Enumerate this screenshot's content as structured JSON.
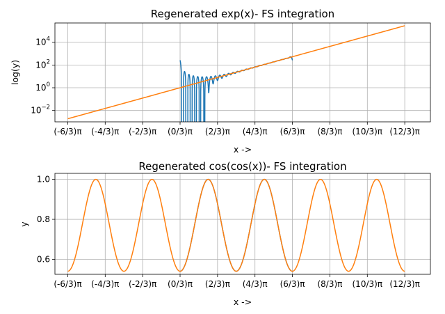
{
  "chart_data": [
    {
      "type": "line",
      "title": "Regenerated exp(x)- FS integration",
      "xlabel": "x ->",
      "ylabel": "log(y)",
      "yscale": "log",
      "xlim": [
        -7.0,
        14.0
      ],
      "ylim_exponent": [
        -3.0,
        5.7
      ],
      "grid": true,
      "xticks": [
        {
          "value": -6.2832,
          "label": "(-6/3)π"
        },
        {
          "value": -4.1888,
          "label": "(-4/3)π"
        },
        {
          "value": -2.0944,
          "label": "(-2/3)π"
        },
        {
          "value": 0.0,
          "label": "(0/3)π"
        },
        {
          "value": 2.0944,
          "label": "(2/3)π"
        },
        {
          "value": 4.1888,
          "label": "(4/3)π"
        },
        {
          "value": 6.2832,
          "label": "(6/3)π"
        },
        {
          "value": 8.3776,
          "label": "(8/3)π"
        },
        {
          "value": 10.472,
          "label": "(10/3)π"
        },
        {
          "value": 12.566,
          "label": "(12/3)π"
        }
      ],
      "yticks": [
        {
          "exponent": -2,
          "base": "10",
          "exp_label": "−2"
        },
        {
          "exponent": 0,
          "base": "10",
          "exp_label": "0"
        },
        {
          "exponent": 2,
          "base": "10",
          "exp_label": "2"
        },
        {
          "exponent": 4,
          "base": "10",
          "exp_label": "4"
        }
      ],
      "series": [
        {
          "color": "#1f77b4",
          "kind": "fourier_approx_exp",
          "x_range": [
            0.0,
            6.2832
          ],
          "approx_points": [
            [
              0.0,
              250
            ],
            [
              0.5,
              0.02
            ],
            [
              1.0,
              0.01
            ],
            [
              1.5,
              0.01
            ],
            [
              2.0,
              0.3
            ],
            [
              2.5,
              5
            ],
            [
              3.1,
              21
            ],
            [
              4.0,
              55
            ],
            [
              5.0,
              150
            ],
            [
              6.0,
              400
            ],
            [
              6.2832,
              250
            ]
          ]
        },
        {
          "color": "#ff7f0e",
          "kind": "exp",
          "x_range": [
            -6.2832,
            12.566
          ],
          "approx_points": [
            [
              -6.2832,
              0.00187
            ],
            [
              0.0,
              1.0
            ],
            [
              6.2832,
              535.5
            ],
            [
              12.566,
              286751
            ]
          ]
        }
      ]
    },
    {
      "type": "line",
      "title": "Regenerated cos(cos(x))- FS integration",
      "xlabel": "x ->",
      "ylabel": "y",
      "xlim": [
        -7.0,
        14.0
      ],
      "ylim": [
        0.525,
        1.03
      ],
      "grid": true,
      "xticks": [
        {
          "value": -6.2832,
          "label": "(-6/3)π"
        },
        {
          "value": -4.1888,
          "label": "(-4/3)π"
        },
        {
          "value": -2.0944,
          "label": "(-2/3)π"
        },
        {
          "value": 0.0,
          "label": "(0/3)π"
        },
        {
          "value": 2.0944,
          "label": "(2/3)π"
        },
        {
          "value": 4.1888,
          "label": "(4/3)π"
        },
        {
          "value": 6.2832,
          "label": "(6/3)π"
        },
        {
          "value": 8.3776,
          "label": "(8/3)π"
        },
        {
          "value": 10.472,
          "label": "(10/3)π"
        },
        {
          "value": 12.566,
          "label": "(12/3)π"
        }
      ],
      "yticks": [
        {
          "value": 0.6,
          "label": "0.6"
        },
        {
          "value": 0.8,
          "label": "0.8"
        },
        {
          "value": 1.0,
          "label": "1.0"
        }
      ],
      "series": [
        {
          "color": "#1f77b4",
          "kind": "cos(cos(x))",
          "x_range": [
            0.0,
            6.2832
          ],
          "approx_points": [
            [
              0.0,
              0.5403
            ],
            [
              1.5708,
              1.0
            ],
            [
              3.1416,
              0.5403
            ],
            [
              4.7124,
              1.0
            ],
            [
              6.2832,
              0.5403
            ]
          ]
        },
        {
          "color": "#ff7f0e",
          "kind": "cos(cos(x))",
          "x_range": [
            -6.2832,
            12.566
          ],
          "approx_points": [
            [
              -6.2832,
              0.5403
            ],
            [
              -4.7124,
              1.0
            ],
            [
              -3.1416,
              0.5403
            ],
            [
              -1.5708,
              1.0
            ],
            [
              0.0,
              0.5403
            ],
            [
              1.5708,
              1.0
            ],
            [
              3.1416,
              0.5403
            ],
            [
              4.7124,
              1.0
            ],
            [
              6.2832,
              0.5403
            ],
            [
              7.854,
              1.0
            ],
            [
              9.4248,
              0.5403
            ],
            [
              10.9956,
              1.0
            ],
            [
              12.566,
              0.5403
            ]
          ]
        }
      ]
    }
  ]
}
